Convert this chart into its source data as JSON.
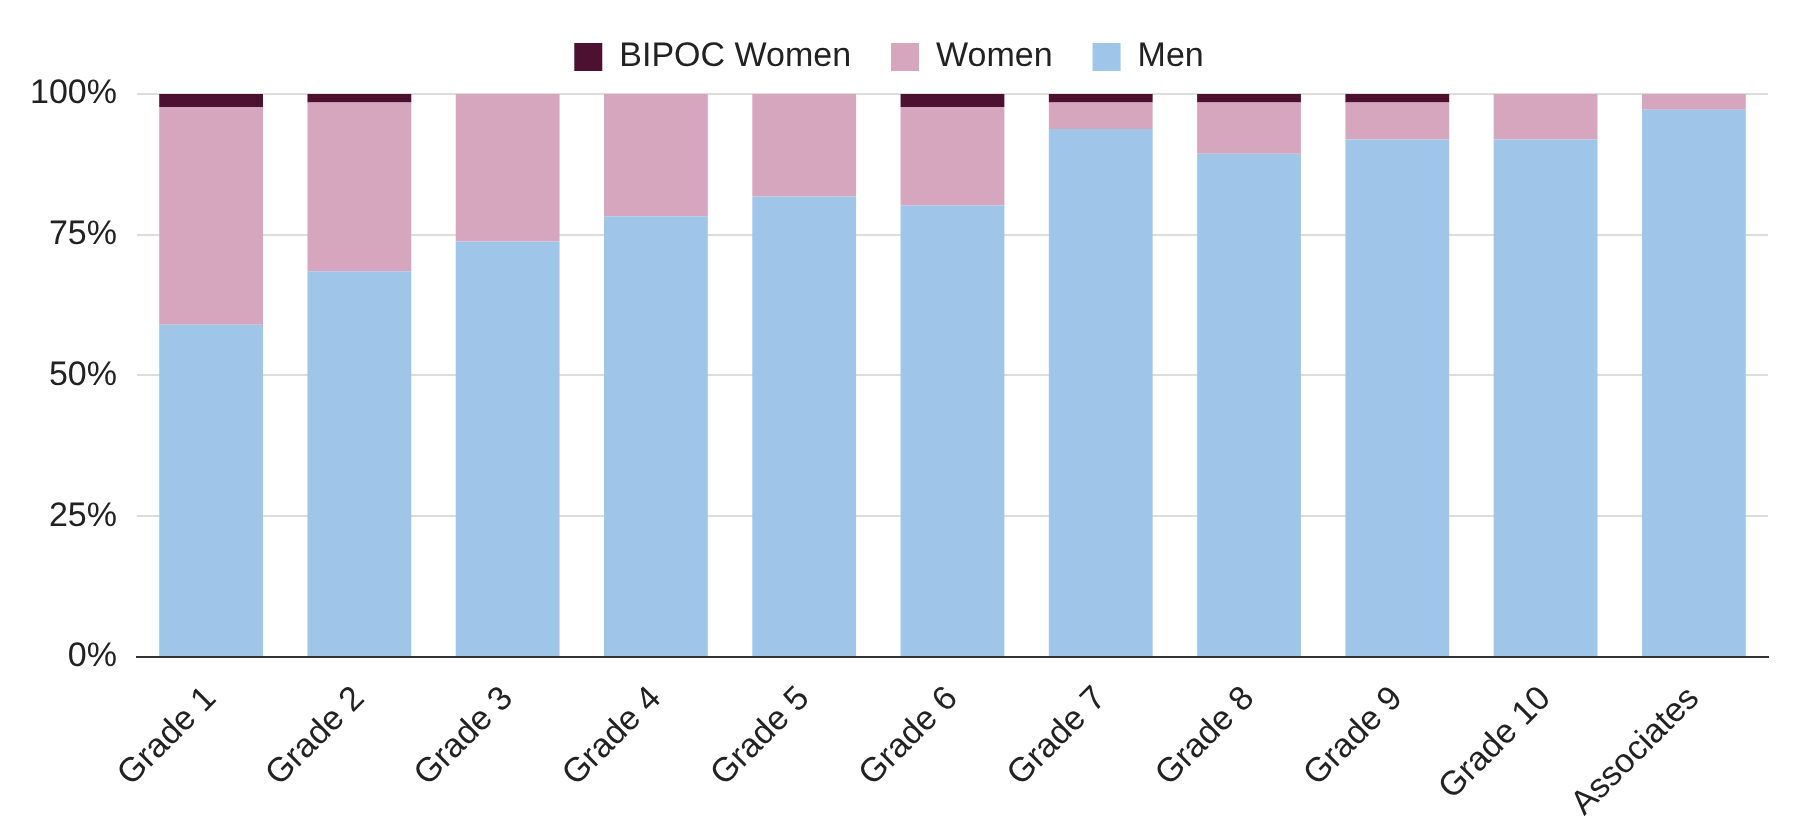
{
  "chart_data": {
    "type": "bar",
    "stacked": true,
    "categories": [
      "Grade 1",
      "Grade 2",
      "Grade 3",
      "Grade 4",
      "Grade 5",
      "Grade 6",
      "Grade 7",
      "Grade 8",
      "Grade 9",
      "Grade 10",
      "Associates"
    ],
    "series": [
      {
        "name": "Men",
        "color": "#9fc5e8",
        "values": [
          59,
          68.5,
          73.8,
          78.3,
          81.8,
          80.2,
          93.8,
          89.4,
          91.9,
          91.9,
          97.2
        ]
      },
      {
        "name": "Women",
        "color": "#d5a6bd",
        "values": [
          38.7,
          30,
          26.2,
          21.7,
          18.2,
          17.5,
          4.7,
          9.1,
          6.6,
          8.1,
          2.8
        ]
      },
      {
        "name": "BIPOC Women",
        "color": "#4c1130",
        "values": [
          2.3,
          1.5,
          0,
          0,
          0,
          2.3,
          1.5,
          1.5,
          1.5,
          0,
          0
        ]
      }
    ],
    "ylim": [
      0,
      100
    ],
    "yticks": [
      {
        "value": 0,
        "label": "0%"
      },
      {
        "value": 25,
        "label": "25%"
      },
      {
        "value": 50,
        "label": "50%"
      },
      {
        "value": 75,
        "label": "75%"
      },
      {
        "value": 100,
        "label": "100%"
      }
    ],
    "grid": "y",
    "legend": "top"
  }
}
